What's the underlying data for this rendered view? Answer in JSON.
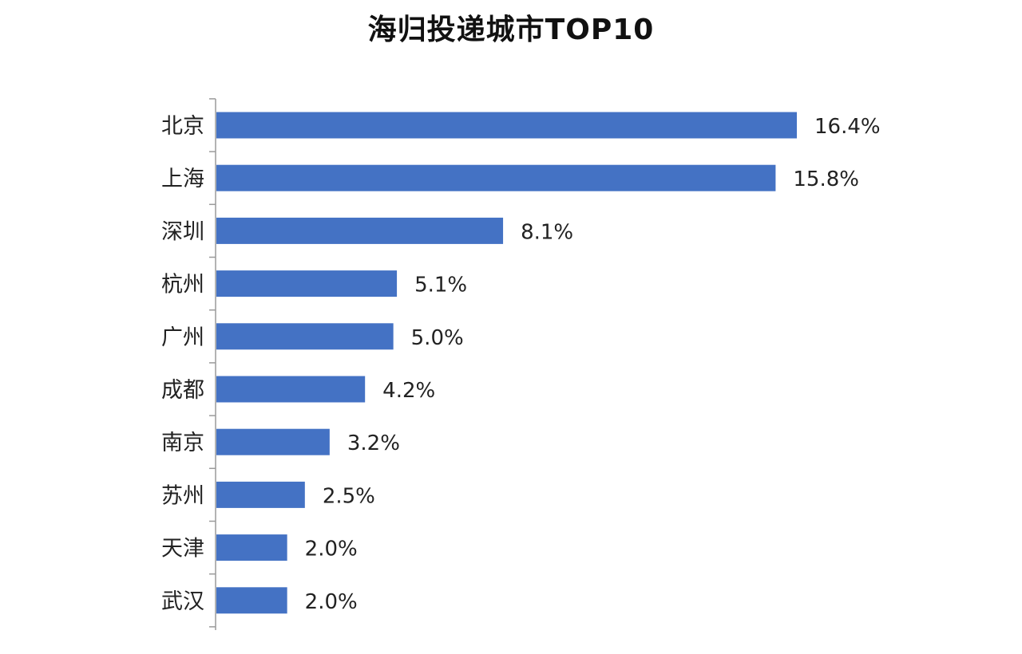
{
  "chart_data": {
    "type": "bar",
    "orientation": "horizontal",
    "title": "海归投递城市TOP10",
    "categories": [
      "北京",
      "上海",
      "深圳",
      "杭州",
      "广州",
      "成都",
      "南京",
      "苏州",
      "天津",
      "武汉"
    ],
    "values": [
      16.4,
      15.8,
      8.1,
      5.1,
      5.0,
      4.2,
      3.2,
      2.5,
      2.0,
      2.0
    ],
    "value_labels": [
      "16.4%",
      "15.8%",
      "8.1%",
      "5.1%",
      "5.0%",
      "4.2%",
      "3.2%",
      "2.5%",
      "2.0%",
      "2.0%"
    ],
    "xlabel": "",
    "ylabel": "",
    "xlim": [
      0,
      16.4
    ],
    "grid": false,
    "legend": "none",
    "bar_color": "#4472C4"
  }
}
